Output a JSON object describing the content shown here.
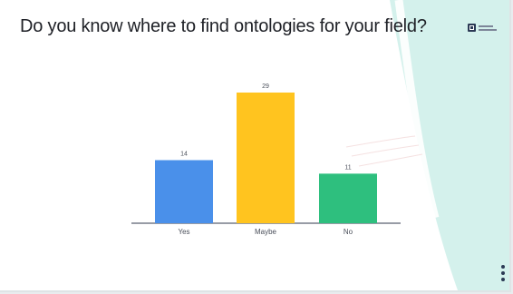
{
  "slide": {
    "title": "Do you know where to find ontologies for your field?",
    "logo_icon": "presenter-logo-icon",
    "menu_icon": "vertical-dots-icon",
    "colors": {
      "background": "#ffffff",
      "accent_shape": "#d4f1ec",
      "text": "#1e2026"
    }
  },
  "chart_data": {
    "type": "bar",
    "title": "Do you know where to find ontologies for your field?",
    "categories": [
      "Yes",
      "Maybe",
      "No"
    ],
    "values": [
      14,
      29,
      11
    ],
    "ylim": [
      0,
      29
    ],
    "colors": [
      "#4a90ea",
      "#ffc41f",
      "#2ebf7e"
    ],
    "show_value_labels": true,
    "grid": false,
    "legend": "none"
  }
}
